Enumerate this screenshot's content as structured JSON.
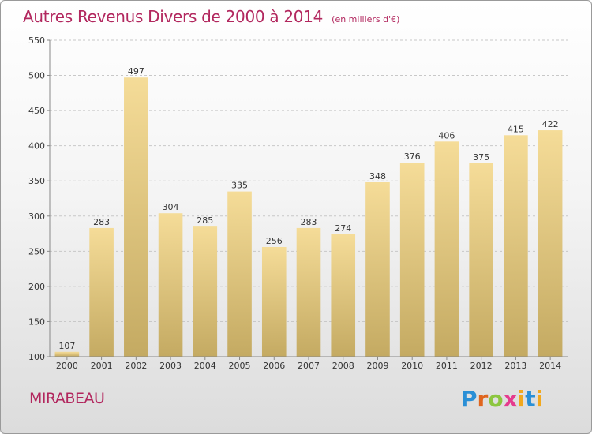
{
  "title": "Autres Revenus Divers de 2000 à 2014",
  "subtitle": "(en milliers d'€)",
  "commune": "MIRABEAU",
  "logo": {
    "p": "P",
    "r": "r",
    "o": "o",
    "x": "x",
    "i1": "i",
    "t": "t",
    "i2": "i"
  },
  "chart_data": {
    "type": "bar",
    "categories": [
      "2000",
      "2001",
      "2002",
      "2003",
      "2004",
      "2005",
      "2006",
      "2007",
      "2008",
      "2009",
      "2010",
      "2011",
      "2012",
      "2013",
      "2014"
    ],
    "values": [
      107,
      283,
      497,
      304,
      285,
      335,
      256,
      283,
      274,
      348,
      376,
      406,
      375,
      415,
      422
    ],
    "ylim": [
      100,
      550
    ],
    "yticks": [
      100,
      150,
      200,
      250,
      300,
      350,
      400,
      450,
      500,
      550
    ],
    "grid": true,
    "colors": {
      "bar_top": "#f5dc98",
      "bar_bottom": "#c4aa62",
      "grid": "#c8c8c8",
      "axis": "#888888"
    }
  }
}
